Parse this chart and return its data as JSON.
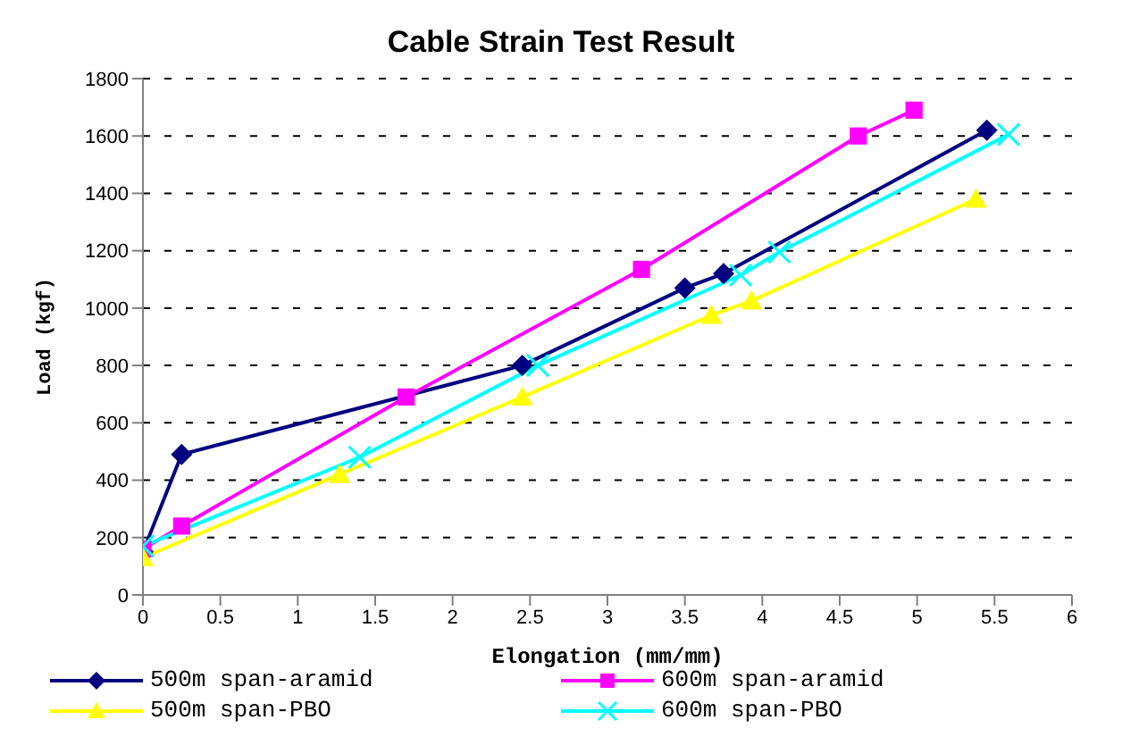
{
  "chart_data": {
    "type": "line",
    "title": "Cable Strain Test Result",
    "xlabel": "Elongation (mm/mm)",
    "ylabel": "Load (kgf)",
    "xlim": [
      0,
      6
    ],
    "xticks": [
      0,
      0.5,
      1,
      1.5,
      2,
      2.5,
      3,
      3.5,
      4,
      4.5,
      5,
      5.5,
      6
    ],
    "ylim": [
      0,
      1800
    ],
    "yticks": [
      0,
      200,
      400,
      600,
      800,
      1000,
      1200,
      1400,
      1600,
      1800
    ],
    "grid": "y",
    "legend": "bottom",
    "line_style": "solid",
    "series": [
      {
        "name": "500m span-aramid",
        "color": "#000080",
        "marker": "diamond",
        "x": [
          0,
          0.25,
          2.45,
          3.5,
          3.75,
          5.45
        ],
        "values": [
          150,
          490,
          800,
          1070,
          1120,
          1620
        ]
      },
      {
        "name": "600m span-aramid",
        "color": "#ff00ff",
        "marker": "square",
        "x": [
          0,
          0.25,
          1.7,
          3.22,
          4.62,
          4.98
        ],
        "values": [
          160,
          240,
          690,
          1135,
          1600,
          1690
        ]
      },
      {
        "name": "500m span-PBO",
        "color": "#ffff00",
        "marker": "triangle",
        "x": [
          0,
          1.27,
          2.45,
          3.67,
          3.93,
          5.38
        ],
        "values": [
          130,
          420,
          690,
          975,
          1025,
          1380
        ]
      },
      {
        "name": "600m span-PBO",
        "color": "#00ffff",
        "marker": "cross",
        "x": [
          0,
          1.4,
          2.55,
          3.86,
          4.11,
          5.59
        ],
        "values": [
          170,
          480,
          800,
          1115,
          1195,
          1605
        ]
      }
    ]
  }
}
